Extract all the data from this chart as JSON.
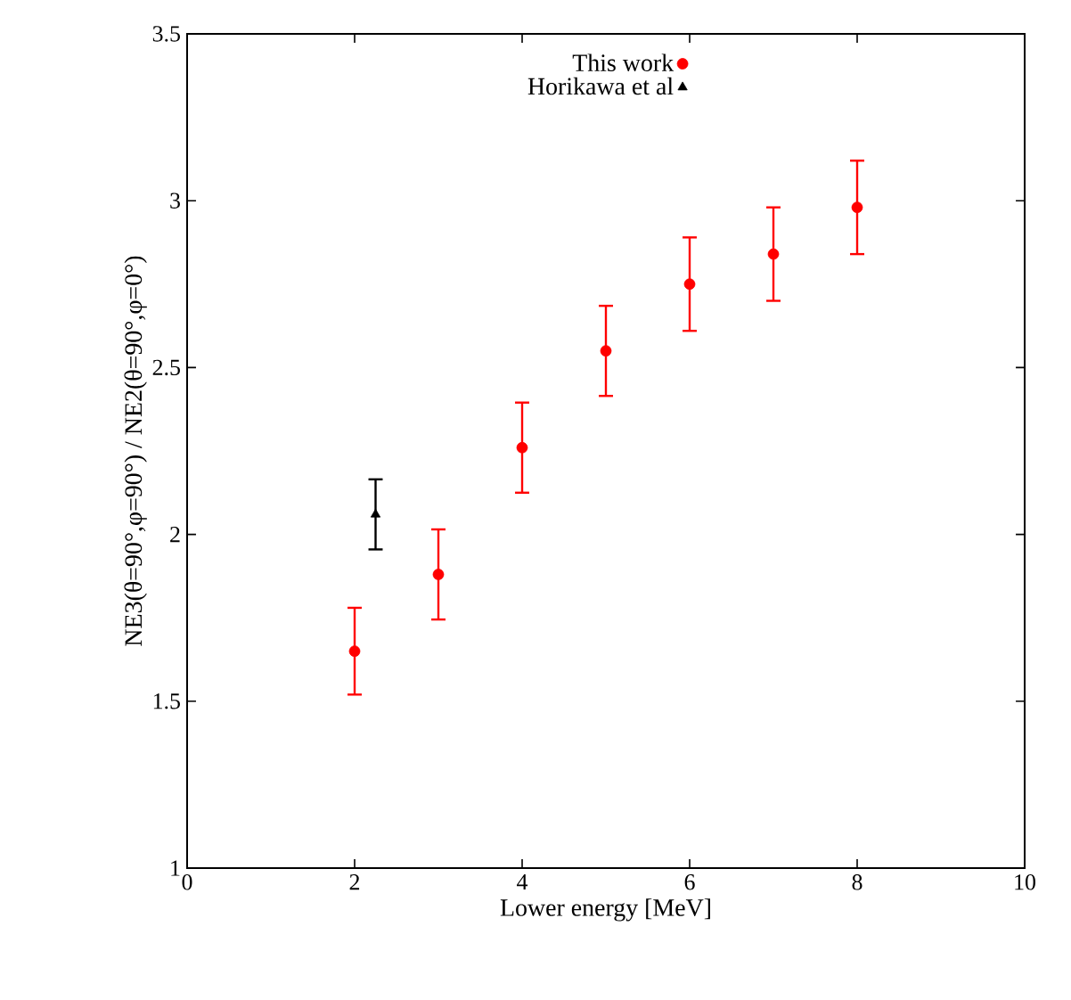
{
  "chart_data": {
    "type": "scatter",
    "xlabel": "Lower energy [MeV]",
    "ylabel": "NE3(θ=90°,φ=90°) / NE2(θ=90°,φ=0°)",
    "xlim": [
      0,
      10
    ],
    "xticks": [
      0,
      2,
      4,
      6,
      8,
      10
    ],
    "ylim": [
      1,
      3.5
    ],
    "yticks": [
      1,
      1.5,
      2,
      2.5,
      3,
      3.5
    ],
    "grid": false,
    "legend": "top",
    "series": [
      {
        "name": "This work",
        "color": "#ff0000",
        "marker": "circle",
        "x": [
          2,
          3,
          4,
          5,
          6,
          7,
          8
        ],
        "values": [
          1.65,
          1.88,
          2.26,
          2.55,
          2.75,
          2.84,
          2.98
        ],
        "errors": [
          0.13,
          0.135,
          0.135,
          0.135,
          0.14,
          0.14,
          0.14
        ]
      },
      {
        "name": "Horikawa et al",
        "color": "#000000",
        "marker": "triangle",
        "x": [
          2.25
        ],
        "values": [
          2.06
        ],
        "errors": [
          0.105
        ]
      }
    ]
  }
}
